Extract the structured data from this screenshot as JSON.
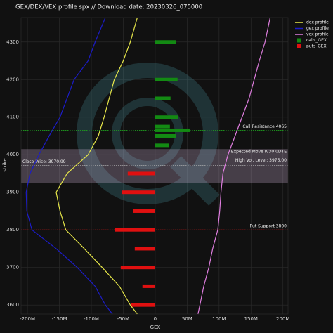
{
  "chart_data": {
    "type": "profile",
    "title": "GEX/DEX/VEX profile spx //  Download date: 20230326_075000",
    "x_label": "GEX",
    "y_label": "strike",
    "xlim": [
      -210,
      208
    ],
    "ylim": [
      3576,
      4365
    ],
    "xticks": [
      {
        "value": -200,
        "label": "-200M"
      },
      {
        "value": -150,
        "label": "-150M"
      },
      {
        "value": -100,
        "label": "-100M"
      },
      {
        "value": -50,
        "label": "-50M"
      },
      0,
      {
        "value": 50,
        "label": "50M"
      },
      {
        "value": 100,
        "label": "100M"
      },
      {
        "value": 150,
        "label": "150M"
      },
      {
        "value": 200,
        "label": "200M"
      }
    ],
    "yticks": [
      3600,
      3700,
      3800,
      3900,
      4000,
      4100,
      4200,
      4300
    ],
    "grid": true,
    "legend": "top-right",
    "lines": [
      {
        "name": "dex profile",
        "color": "#e8e84a",
        "x": [
          -28,
          -39,
          -50,
          -64,
          -72,
          -80,
          -89,
          -105,
          -138,
          -155,
          -149,
          -140,
          -111,
          -83,
          -56,
          -39,
          -28
        ],
        "y": [
          4365,
          4300,
          4250,
          4200,
          4150,
          4100,
          4050,
          4000,
          3950,
          3900,
          3850,
          3800,
          3750,
          3700,
          3650,
          3600,
          3576
        ]
      },
      {
        "name": "gex profile",
        "color": "#1c1cc8",
        "x": [
          -78,
          -94,
          -105,
          -127,
          -138,
          -149,
          -166,
          -182,
          -196,
          -202,
          -201,
          -193,
          -155,
          -122,
          -94,
          -78,
          -67
        ],
        "y": [
          4365,
          4300,
          4250,
          4200,
          4150,
          4100,
          4050,
          4000,
          3950,
          3900,
          3850,
          3800,
          3750,
          3700,
          3650,
          3600,
          3576
        ]
      },
      {
        "name": "vex profile",
        "color": "#e07ee0",
        "x": [
          180,
          172,
          163,
          155,
          147,
          136,
          125,
          114,
          106,
          103,
          101,
          98,
          90,
          84,
          76,
          70,
          67
        ],
        "y": [
          4365,
          4300,
          4250,
          4200,
          4150,
          4100,
          4050,
          4000,
          3950,
          3900,
          3850,
          3800,
          3750,
          3700,
          3650,
          3600,
          3576
        ]
      }
    ],
    "bars": [
      {
        "name": "calls_GEX",
        "color": "#138a13",
        "strikes": [
          4300,
          4200,
          4150,
          4100,
          4075,
          4065,
          4050,
          4025
        ],
        "values": [
          32,
          35,
          24,
          36,
          23,
          55,
          32,
          21
        ]
      },
      {
        "name": "puts_GEX",
        "color": "#e01010",
        "strikes": [
          3950,
          3900,
          3850,
          3800,
          3750,
          3700,
          3650,
          3600
        ],
        "values": [
          -43,
          -52,
          -35,
          -63,
          -32,
          -54,
          -20,
          -38
        ]
      }
    ],
    "band": {
      "label": "Expected Move IV30 0DTE",
      "y0": 3925,
      "y1": 4015,
      "color": "#e6c8f0"
    },
    "hlines": [
      {
        "label": "Call Resistance 4065",
        "value": 4065,
        "color": "#1ea01e",
        "side": "right"
      },
      {
        "label": "Close Price: 3970.99",
        "value": 3970.99,
        "color": "#bbbbbb",
        "side": "left"
      },
      {
        "label": "High Vol. Level: 3975.00",
        "value": 3975,
        "color": "#d8d840",
        "side": "right"
      },
      {
        "label": "Put Support 3800",
        "value": 3800,
        "color": "#e01010",
        "side": "right"
      }
    ]
  }
}
